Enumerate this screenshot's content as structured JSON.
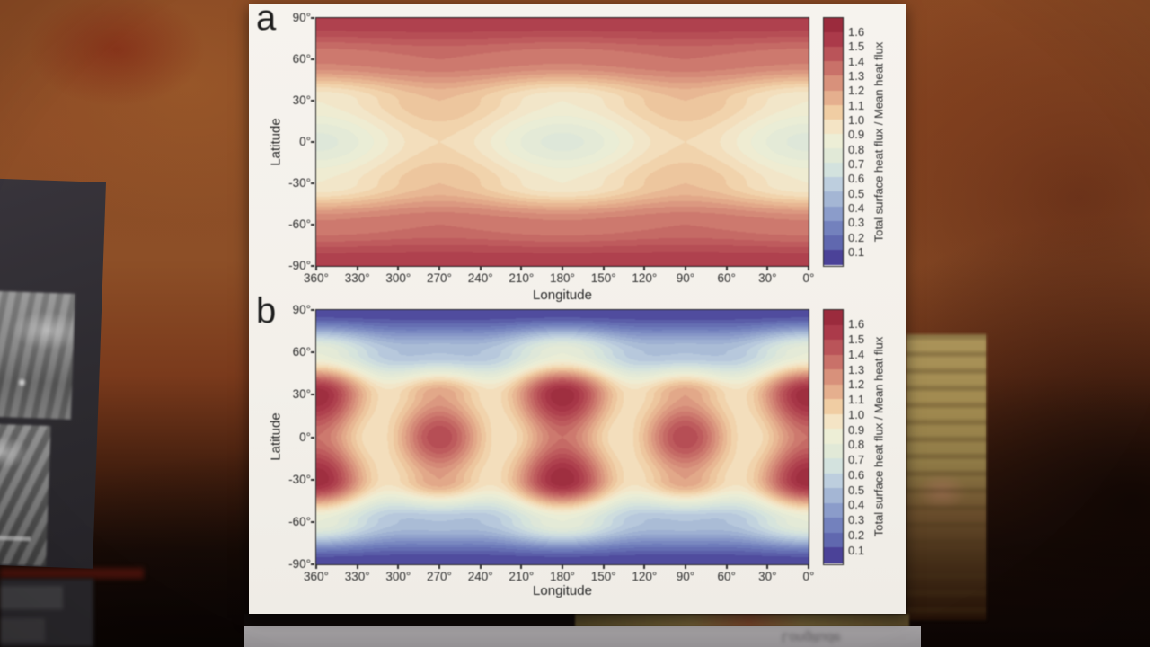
{
  "scene": {
    "description": "Video frame: white scientific figure with two contour maps standing on a reflective dark surface in front of a mottled rust-red background; a dark gray panel with two grayscale surface photos is partially visible at left, a tan textured item at right, and a mirrored reflection of the poster below.",
    "reflection_text": "Longitude"
  },
  "figure": {
    "panels": [
      {
        "id": "a",
        "label": "a",
        "xlabel": "Longitude",
        "ylabel": "Latitude",
        "x_ticks": [
          "360°",
          "330°",
          "300°",
          "270°",
          "240°",
          "210°",
          "180°",
          "150°",
          "120°",
          "90°",
          "60°",
          "30°",
          "0°"
        ],
        "y_ticks": [
          "90°",
          "60°",
          "30°",
          "0°",
          "-30°",
          "-60°",
          "-90°"
        ],
        "colorbar_ticks": [
          "1.6",
          "1.5",
          "1.4",
          "1.3",
          "1.2",
          "1.1",
          "1.0",
          "0.9",
          "0.8",
          "0.7",
          "0.6",
          "0.5",
          "0.4",
          "0.3",
          "0.2",
          "0.1"
        ],
        "colorbar_label": "Total surface heat flux / Mean heat flux"
      },
      {
        "id": "b",
        "label": "b",
        "xlabel": "Longitude",
        "ylabel": "Latitude",
        "x_ticks": [
          "360°",
          "330°",
          "300°",
          "270°",
          "240°",
          "210°",
          "180°",
          "150°",
          "120°",
          "90°",
          "60°",
          "30°",
          "0°"
        ],
        "y_ticks": [
          "90°",
          "60°",
          "30°",
          "0°",
          "-30°",
          "-60°",
          "-90°"
        ],
        "colorbar_ticks": [
          "1.6",
          "1.5",
          "1.4",
          "1.3",
          "1.2",
          "1.1",
          "1.0",
          "0.9",
          "0.8",
          "0.7",
          "0.6",
          "0.5",
          "0.4",
          "0.3",
          "0.2",
          "0.1"
        ],
        "colorbar_label": "Total surface heat flux / Mean heat flux"
      }
    ]
  },
  "chart_data": [
    {
      "type": "heatmap",
      "panel": "a",
      "title": "",
      "xlabel": "Longitude",
      "ylabel": "Latitude",
      "zlabel": "Total surface heat flux / Mean heat flux",
      "xlim_deg": [
        360,
        0
      ],
      "ylim_deg": [
        -90,
        90
      ],
      "x_ticks_deg": [
        360,
        330,
        300,
        270,
        240,
        210,
        180,
        150,
        120,
        90,
        60,
        30,
        0
      ],
      "y_ticks_deg": [
        90,
        60,
        30,
        0,
        -30,
        -60,
        -90
      ],
      "z_ticks": [
        1.6,
        1.5,
        1.4,
        1.3,
        1.2,
        1.1,
        1.0,
        0.9,
        0.8,
        0.7,
        0.6,
        0.5,
        0.4,
        0.3,
        0.2,
        0.1
      ],
      "z_range": [
        0.05,
        1.65
      ],
      "contour_step": 0.05,
      "pattern_summary": "Heat flux maxima ~1.55 in broad bands at both poles at all longitudes; elliptical minima ~0.72 centered on the equator at longitudes 0°/360° and 180°; cream saddle ~1.0 on the equator at longitudes 90° and 270°.",
      "model": {
        "form": "F(lat,lon) = B(|lat|) + A2(|lat|)*cos(2*lon) + A4(|lat|)*cos(4*lon), cosine interpolation between latitude anchors",
        "lat_anchors_deg": [
          0,
          30,
          60,
          90
        ],
        "B": [
          0.865,
          1.0,
          1.33,
          1.55
        ],
        "A2": [
          -0.135,
          -0.1,
          -0.02,
          0.0
        ],
        "A4": [
          0.0,
          0.0,
          0.0,
          0.0
        ]
      },
      "colormap": {
        "bin_centers": [
          0.05,
          0.15,
          0.25,
          0.35,
          0.45,
          0.55,
          0.65,
          0.75,
          0.85,
          0.95,
          1.05,
          1.15,
          1.25,
          1.35,
          1.45,
          1.55,
          1.65
        ],
        "colors": [
          "#4b4298",
          "#6068af",
          "#7381bd",
          "#8b9cca",
          "#a4b6d4",
          "#bdcede",
          "#d3e2de",
          "#e1e9d7",
          "#edeed6",
          "#f4e4c5",
          "#f0cda3",
          "#e5af8e",
          "#d8917b",
          "#c97169",
          "#ba5459",
          "#ab3a4a",
          "#9b2b3d"
        ]
      }
    },
    {
      "type": "heatmap",
      "panel": "b",
      "title": "",
      "xlabel": "Longitude",
      "ylabel": "Latitude",
      "zlabel": "Total surface heat flux / Mean heat flux",
      "xlim_deg": [
        360,
        0
      ],
      "ylim_deg": [
        -90,
        90
      ],
      "x_ticks_deg": [
        360,
        330,
        300,
        270,
        240,
        210,
        180,
        150,
        120,
        90,
        60,
        30,
        0
      ],
      "y_ticks_deg": [
        90,
        60,
        30,
        0,
        -30,
        -60,
        -90
      ],
      "z_ticks": [
        1.6,
        1.5,
        1.4,
        1.3,
        1.2,
        1.1,
        1.0,
        0.9,
        0.8,
        0.7,
        0.6,
        0.5,
        0.4,
        0.3,
        0.2,
        0.1
      ],
      "z_range": [
        0.05,
        1.65
      ],
      "contour_step": 0.05,
      "pattern_summary": "Purple minima ~0.05 poleward of ±75° at all longitudes with wavy blue transition; dark-red dumbbell maxima ~1.65 at latitudes ±30° at longitudes 0°/360° and 180°; rounded red cores ~1.5 on the equator at longitudes 90° and 270°; cream local minima ~0.95 on the equator near longitudes 45°, 135°, 225° and 315°.",
      "model": {
        "form": "F(lat,lon) = B(|lat|) + A2(|lat|)*cos(2*lon) + A4(|lat|)*cos(4*lon), cosine interpolation between latitude anchors",
        "lat_anchors_deg": [
          0,
          30,
          60,
          90
        ],
        "B": [
          1.19,
          1.2125,
          0.6,
          0.05
        ],
        "A2": [
          -0.075,
          0.225,
          0.15,
          0.0
        ],
        "A4": [
          0.235,
          0.2125,
          0.05,
          0.0
        ]
      },
      "colormap": {
        "bin_centers": [
          0.05,
          0.15,
          0.25,
          0.35,
          0.45,
          0.55,
          0.65,
          0.75,
          0.85,
          0.95,
          1.05,
          1.15,
          1.25,
          1.35,
          1.45,
          1.55,
          1.65
        ],
        "colors": [
          "#4b4298",
          "#6068af",
          "#7381bd",
          "#8b9cca",
          "#a4b6d4",
          "#bdcede",
          "#d3e2de",
          "#e1e9d7",
          "#edeed6",
          "#f4e4c5",
          "#f0cda3",
          "#e5af8e",
          "#d8917b",
          "#c97169",
          "#ba5459",
          "#ab3a4a",
          "#9b2b3d"
        ]
      }
    }
  ]
}
